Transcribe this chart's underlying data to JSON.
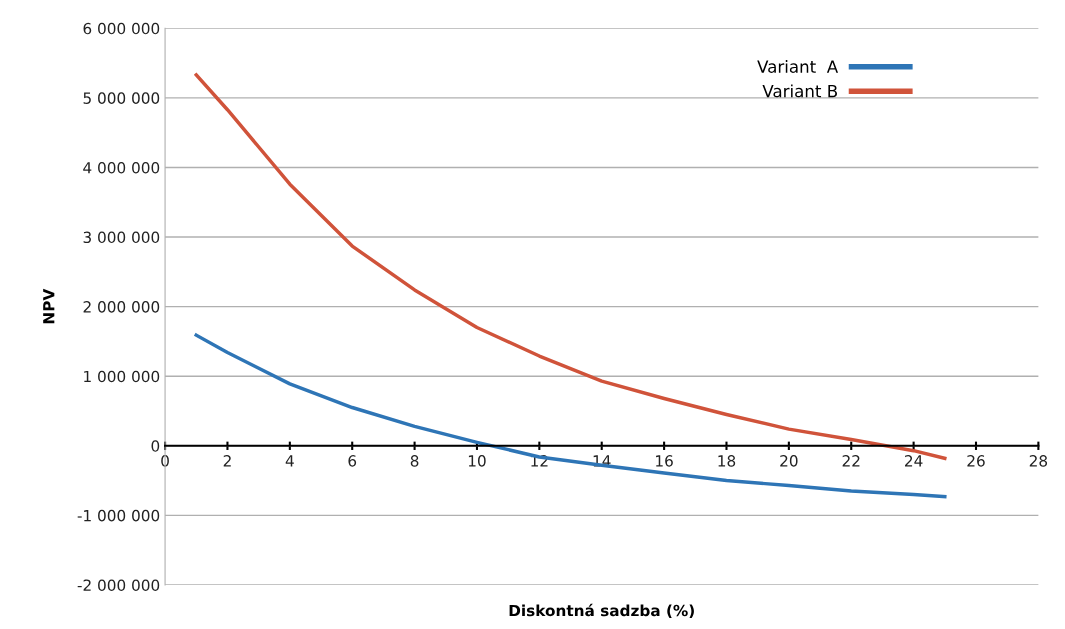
{
  "chart_data": {
    "type": "line",
    "xlabel": "Diskontná sadzba (%)",
    "ylabel": "NPV",
    "x": [
      1,
      2,
      4,
      6,
      8,
      10,
      12,
      14,
      16,
      18,
      20,
      22,
      24,
      25
    ],
    "series": [
      {
        "name": "Variant  A",
        "color": "#2e75b6",
        "values": [
          1590000,
          1340000,
          890000,
          550000,
          280000,
          50000,
          -160000,
          -280000,
          -390000,
          -500000,
          -570000,
          -650000,
          -700000,
          -730000
        ]
      },
      {
        "name": "Variant B",
        "color": "#d0533a",
        "values": [
          5330000,
          4830000,
          3760000,
          2870000,
          2240000,
          1700000,
          1290000,
          930000,
          680000,
          450000,
          240000,
          90000,
          -70000,
          -180000
        ]
      }
    ],
    "xlim": [
      0,
      28
    ],
    "xticks": [
      0,
      2,
      4,
      6,
      8,
      10,
      12,
      14,
      16,
      18,
      20,
      22,
      24,
      26,
      28
    ],
    "ylim": [
      -2000000,
      6000000
    ],
    "yticks": [
      {
        "value": -2000000,
        "label": "-2 000 000"
      },
      {
        "value": -1000000,
        "label": "-1 000 000"
      },
      {
        "value": 0,
        "label": "0"
      },
      {
        "value": 1000000,
        "label": "1 000 000"
      },
      {
        "value": 2000000,
        "label": "2 000 000"
      },
      {
        "value": 3000000,
        "label": "3 000 000"
      },
      {
        "value": 4000000,
        "label": "4 000 000"
      },
      {
        "value": 5000000,
        "label": "5 000 000"
      },
      {
        "value": 6000000,
        "label": "6 000 000"
      }
    ],
    "grid": "y",
    "legend": "top right",
    "marker": "none",
    "line_style": "solid"
  }
}
